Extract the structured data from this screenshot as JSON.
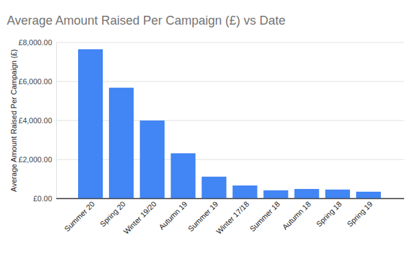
{
  "chart_data": {
    "type": "bar",
    "title": "Average Amount Raised Per Campaign (£) vs Date",
    "y_label": "Average Amount Raised Per Campaign (£)",
    "categories": [
      "Summer 20",
      "Spring 20",
      "Winter 19/20",
      "Autumn 19",
      "Summer 19",
      "Winter 17/18",
      "Summer 18",
      "Autumn 18",
      "Spring 18",
      "Spring 19"
    ],
    "values": [
      7650,
      5680,
      4000,
      2320,
      1120,
      670,
      420,
      490,
      460,
      350
    ],
    "color": "#4285f4",
    "ylim": [
      0,
      8000
    ],
    "yticks": [
      {
        "value": 0,
        "label": "£0.00"
      },
      {
        "value": 2000,
        "label": "£2,000.00"
      },
      {
        "value": 4000,
        "label": "£4,000.00"
      },
      {
        "value": 6000,
        "label": "£6,000.00"
      },
      {
        "value": 8000,
        "label": "£8,000.00"
      }
    ],
    "grid": true
  }
}
